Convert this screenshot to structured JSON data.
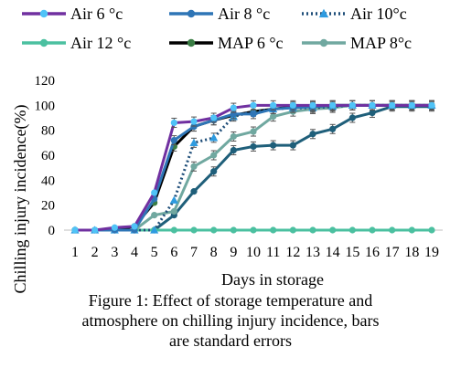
{
  "chart_data": {
    "type": "line",
    "xlabel": "Days in storage",
    "ylabel": "Chilling injury incidence(%)",
    "x": [
      1,
      2,
      3,
      4,
      5,
      6,
      7,
      8,
      9,
      10,
      11,
      12,
      13,
      14,
      15,
      16,
      17,
      18,
      19
    ],
    "xlim": [
      1,
      19
    ],
    "ylim": [
      0,
      120
    ],
    "yticks": [
      "0",
      "20",
      "40",
      "60",
      "80",
      "100",
      "120"
    ],
    "xticks": [
      "1",
      "2",
      "3",
      "4",
      "5",
      "6",
      "7",
      "8",
      "9",
      "10",
      "11",
      "12",
      "13",
      "14",
      "15",
      "16",
      "17",
      "18",
      "19"
    ],
    "grid": false,
    "legend_position": "top",
    "series": [
      {
        "name": "Air 6 °c",
        "color": "#7030a0",
        "marker": "circle",
        "dash": "solid",
        "marker_color": "#4fc3f7",
        "values": [
          0,
          0,
          2,
          3,
          30,
          86,
          87,
          90,
          98,
          100,
          100,
          100,
          100,
          100,
          100,
          100,
          100,
          100,
          100
        ]
      },
      {
        "name": "Air 8 °c",
        "color": "#2e75b6",
        "marker": "circle",
        "dash": "solid",
        "marker_color": "#2e75b6",
        "values": [
          0,
          0,
          0,
          0,
          25,
          72,
          83,
          88,
          93,
          93,
          97,
          98,
          99,
          100,
          100,
          100,
          100,
          100,
          100
        ]
      },
      {
        "name": "Air 10°c",
        "color": "#1f4e79",
        "marker": "triangle",
        "dash": "dotted",
        "marker_color": "#2e9be0",
        "values": [
          0,
          0,
          0,
          0,
          0,
          24,
          70,
          74,
          91,
          95,
          97,
          98,
          98,
          99,
          100,
          100,
          100,
          100,
          100
        ]
      },
      {
        "name": "Air 12 °c",
        "color": "#4bc0a0",
        "marker": "circle",
        "dash": "solid",
        "marker_color": "#4bc0a0",
        "values": [
          0,
          0,
          0,
          0,
          0,
          0,
          0,
          0,
          0,
          0,
          0,
          0,
          0,
          0,
          0,
          0,
          0,
          0,
          0
        ]
      },
      {
        "name": "MAP 6 °c",
        "color": "#000000",
        "marker": "circle",
        "dash": "solid",
        "marker_color": "#3a7d44",
        "values": [
          0,
          0,
          0,
          3,
          22,
          67,
          83,
          88,
          92,
          95,
          97,
          99,
          99,
          100,
          100,
          100,
          100,
          100,
          100
        ]
      },
      {
        "name": "MAP 8°c",
        "color": "#70a8a0",
        "marker": "circle",
        "dash": "solid",
        "marker_color": "#70a8a0",
        "values": [
          0,
          0,
          0,
          0,
          12,
          15,
          51,
          60,
          75,
          79,
          91,
          95,
          97,
          98,
          100,
          100,
          100,
          100,
          100
        ]
      },
      {
        "name": "",
        "color": "#1f5f7a",
        "marker": "circle",
        "dash": "solid",
        "marker_color": "#1f5f7a",
        "values": [
          0,
          0,
          0,
          0,
          0,
          12,
          31,
          47,
          64,
          67,
          68,
          68,
          77,
          81,
          90,
          94,
          99,
          99,
          99
        ]
      }
    ]
  },
  "caption": {
    "line1": "Figure 1: Effect of storage temperature and",
    "line2": "atmosphere on chilling injury incidence, bars",
    "line3": "are standard errors"
  }
}
